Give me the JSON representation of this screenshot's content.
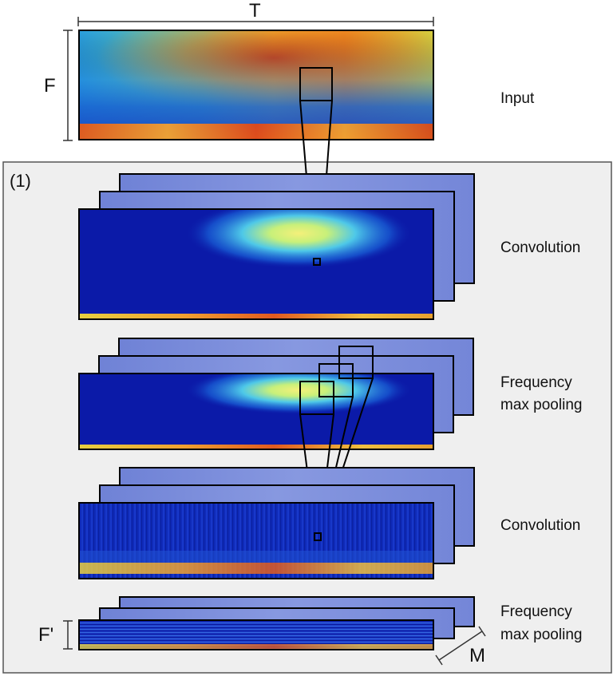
{
  "top_axis_label": "T",
  "left_axis_label": "F",
  "panel_index": "(1)",
  "bottom_left_label": "F'",
  "bottom_right_label": "M",
  "stages": [
    {
      "id": "input",
      "label": "Input"
    },
    {
      "id": "conv1",
      "label": "Convolution"
    },
    {
      "id": "pool1",
      "label_line1": "Frequency",
      "label_line2": "max pooling"
    },
    {
      "id": "conv2",
      "label": "Convolution"
    },
    {
      "id": "pool2",
      "label_line1": "Frequency",
      "label_line2": "max pooling"
    }
  ],
  "colors": {
    "panel_bg": "#efefef",
    "frame": "#000000",
    "deep_blue": "#0b1aa8",
    "light_slate": "#7f8fd8",
    "heat_red": "#c8281a",
    "heat_orange": "#f08a1c",
    "heat_yellow": "#e8e04a",
    "heat_cyan": "#46c8e0"
  }
}
